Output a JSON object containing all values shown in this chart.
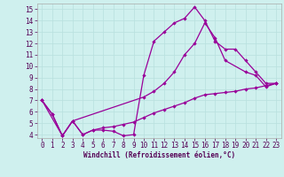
{
  "xlabel": "Windchill (Refroidissement éolien,°C)",
  "xlim": [
    -0.5,
    23.5
  ],
  "ylim": [
    3.7,
    15.5
  ],
  "xticks": [
    0,
    1,
    2,
    3,
    4,
    5,
    6,
    7,
    8,
    9,
    10,
    11,
    12,
    13,
    14,
    15,
    16,
    17,
    18,
    19,
    20,
    21,
    22,
    23
  ],
  "yticks": [
    4,
    5,
    6,
    7,
    8,
    9,
    10,
    11,
    12,
    13,
    14,
    15
  ],
  "bg_color": "#cff0ee",
  "line_color": "#990099",
  "line1_x": [
    0,
    1,
    2,
    3,
    4,
    5,
    6,
    7,
    8,
    9,
    10,
    11,
    12,
    13,
    14,
    15,
    16,
    17,
    18,
    19,
    20,
    21,
    22,
    23
  ],
  "line1_y": [
    7.0,
    5.8,
    3.9,
    5.2,
    4.0,
    4.4,
    4.4,
    4.3,
    3.9,
    4.0,
    9.2,
    12.2,
    13.0,
    13.8,
    14.2,
    15.2,
    14.0,
    12.2,
    11.5,
    11.5,
    10.5,
    9.5,
    8.5,
    8.5
  ],
  "line2_x": [
    0,
    2,
    3,
    10,
    11,
    12,
    13,
    14,
    15,
    16,
    17,
    18,
    20,
    21,
    22,
    23
  ],
  "line2_y": [
    7.0,
    3.9,
    5.2,
    7.3,
    7.8,
    8.5,
    9.5,
    11.0,
    12.0,
    13.8,
    12.5,
    10.5,
    9.5,
    9.2,
    8.2,
    8.5
  ],
  "line3_x": [
    0,
    1,
    2,
    3,
    4,
    5,
    6,
    7,
    8,
    9,
    10,
    11,
    12,
    13,
    14,
    15,
    16,
    17,
    18,
    19,
    20,
    21,
    22,
    23
  ],
  "line3_y": [
    7.0,
    5.8,
    3.9,
    5.2,
    4.0,
    4.4,
    4.6,
    4.7,
    4.9,
    5.1,
    5.5,
    5.9,
    6.2,
    6.5,
    6.8,
    7.2,
    7.5,
    7.6,
    7.7,
    7.8,
    8.0,
    8.1,
    8.3,
    8.5
  ],
  "grid_color": "#b8e0de",
  "tick_color": "#550055",
  "tick_fontsize": 5.5,
  "xlabel_fontsize": 5.5,
  "line_width": 0.9,
  "marker_size": 2.2
}
